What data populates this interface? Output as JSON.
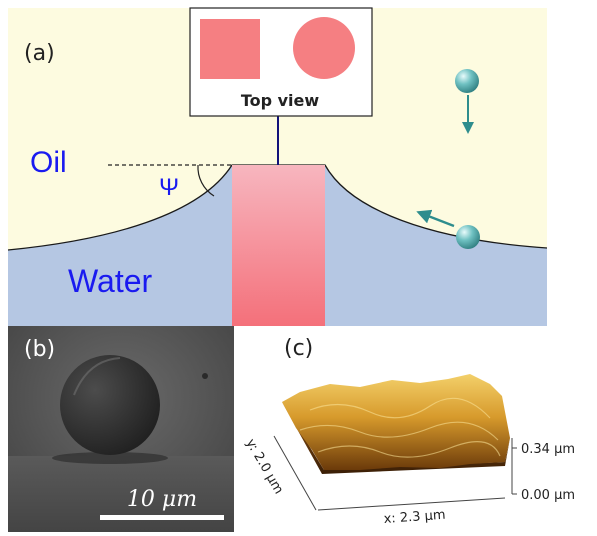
{
  "panel_a": {
    "label": "(a)",
    "oil_label": "Oil",
    "water_label": "Water",
    "contact_angle_symbol": "Ψ",
    "top_view_label": "Top view",
    "top_view_shapes": [
      "square",
      "circle"
    ],
    "colors": {
      "oil": "#fdfbe0",
      "water": "#b5c7e3",
      "pillar_top": "#f7b6bf",
      "pillar_bottom": "#f4707a",
      "shape_fill": "#f57f82",
      "particle": "#5fb3b3",
      "arrow": "#2e8d8d",
      "text_blue": "#1a1af0"
    }
  },
  "panel_b": {
    "label": "(b)",
    "scale_bar_label": "10 μm"
  },
  "panel_c": {
    "label": "(c)",
    "z_top_label": "0.34 µm",
    "z_bottom_label": "0.00 µm",
    "x_axis_label": "x: 2.3 µm",
    "y_axis_label": "y: 2.0 µm"
  }
}
